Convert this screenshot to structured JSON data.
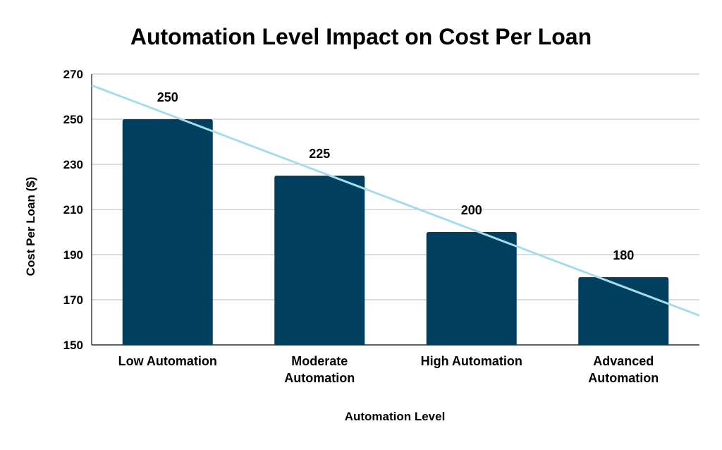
{
  "chart_data": {
    "type": "bar",
    "title": "Automation Level Impact on Cost Per Loan",
    "xlabel": "Automation Level",
    "ylabel": "Cost Per Loan ($)",
    "categories": [
      "Low Automation",
      "Moderate Automation",
      "High Automation",
      "Advanced Automation"
    ],
    "category_lines": [
      [
        "Low Automation"
      ],
      [
        "Moderate",
        "Automation"
      ],
      [
        "High Automation"
      ],
      [
        "Advanced",
        "Automation"
      ]
    ],
    "values": [
      250,
      225,
      200,
      180
    ],
    "data_labels": [
      "250",
      "225",
      "200",
      "180"
    ],
    "ylim": [
      150,
      270
    ],
    "yticks": [
      150,
      170,
      190,
      210,
      230,
      250,
      270
    ],
    "grid": true,
    "legend": "none",
    "bar_color": "#013f5e",
    "trendline": {
      "type": "linear",
      "color": "#a7dcee",
      "start_value": 265,
      "end_value": 163
    }
  }
}
